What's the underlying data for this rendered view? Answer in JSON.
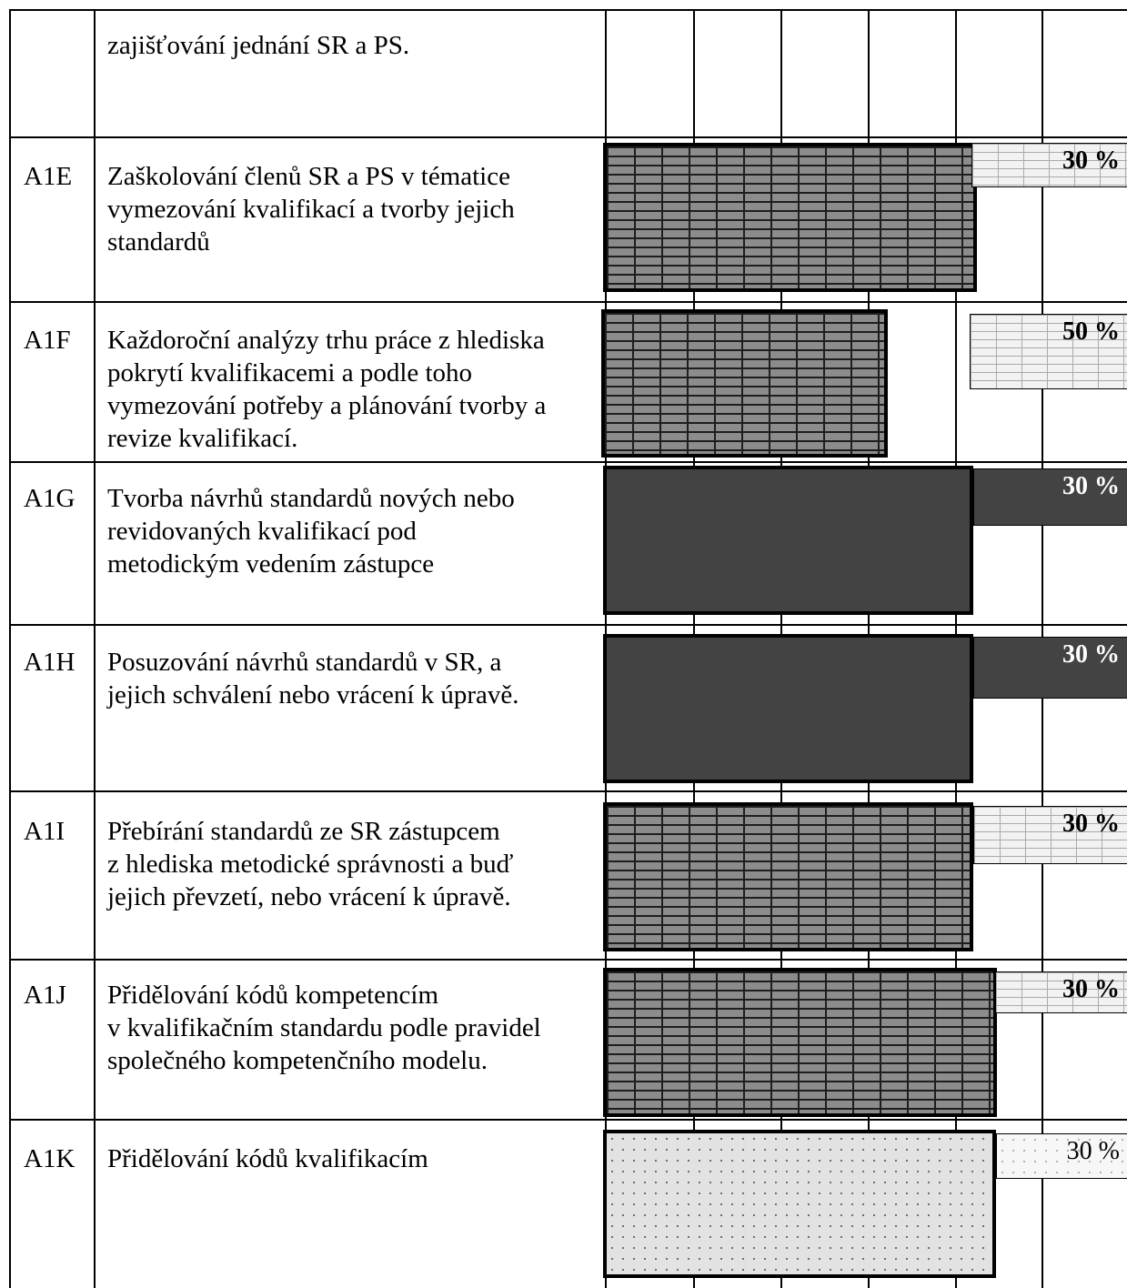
{
  "rows": [
    {
      "code": "",
      "description": "zajišťování jednání SR a PS.",
      "primary_style": "none",
      "secondary_style": "none",
      "percent": ""
    },
    {
      "code": "A1E",
      "description": "Zaškolování členů SR a PS v tématice\nvymezování kvalifikací a tvorby jejich\nstandardů",
      "primary_style": "brick-dark",
      "secondary_style": "brick-light",
      "percent": "30 %"
    },
    {
      "code": "A1F",
      "description": "Každoroční analýzy trhu práce z hlediska\npokrytí kvalifikacemi a podle toho\nvymezování potřeby a plánování tvorby a\nrevize kvalifikací.",
      "primary_style": "brick-dark",
      "secondary_style": "brick-light",
      "percent": "50 %"
    },
    {
      "code": "A1G",
      "description": "Tvorba návrhů standardů nových nebo\nrevidovaných kvalifikací pod\nmetodickým vedením zástupce",
      "primary_style": "solid",
      "secondary_style": "solid",
      "percent": "30 %"
    },
    {
      "code": "A1H",
      "description": "Posuzování návrhů standardů v SR, a\njejich schválení nebo vrácení k úpravě.",
      "primary_style": "solid",
      "secondary_style": "solid",
      "percent": "30 %"
    },
    {
      "code": "A1I",
      "description": "Přebírání standardů ze SR zástupcem\nz hlediska metodické správnosti a buď\njejich převzetí, nebo vrácení k úpravě.",
      "primary_style": "brick-dark",
      "secondary_style": "brick-light",
      "percent": "30 %"
    },
    {
      "code": "A1J",
      "description": "Přidělování kódů kompetencím\nv kvalifikačním standardu podle pravidel\nspolečného kompetenčního modelu.",
      "primary_style": "brick-dark",
      "secondary_style": "brick-light",
      "percent": "30 %"
    },
    {
      "code": "A1K",
      "description": "Přidělování kódů kvalifikacím",
      "primary_style": "dots",
      "secondary_style": "dots-light",
      "percent": "30 %"
    }
  ]
}
